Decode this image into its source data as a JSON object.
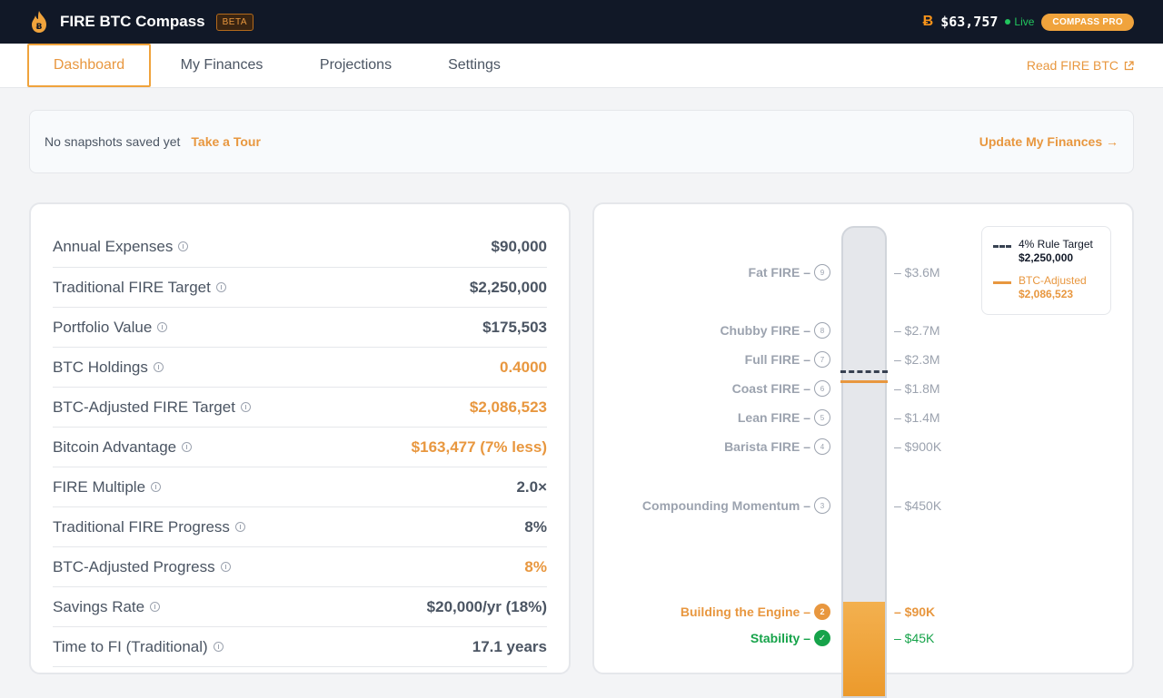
{
  "header": {
    "brand": "FIRE BTC Compass",
    "beta": "BETA",
    "btc_symbol": "Ƀ",
    "btc_price": "$63,757",
    "live": "Live",
    "pro": "COMPASS PRO",
    "logo_icon": "bitcoin-flame-icon"
  },
  "nav": {
    "tabs": [
      "Dashboard",
      "My Finances",
      "Projections",
      "Settings"
    ],
    "active_tab": "Dashboard",
    "external_link": "Read FIRE BTC",
    "external_icon": "external-link-icon"
  },
  "notice": {
    "text": "No snapshots saved yet",
    "tour": "Take a Tour",
    "update": "Update My Finances →"
  },
  "metrics": [
    {
      "label": "Annual Expenses",
      "value": "$90,000",
      "accent": false
    },
    {
      "label": "Traditional FIRE Target",
      "value": "$2,250,000",
      "accent": false
    },
    {
      "label": "Portfolio Value",
      "value": "$175,503",
      "accent": false
    },
    {
      "label": "BTC Holdings",
      "value": "0.4000",
      "accent": true
    },
    {
      "label": "BTC-Adjusted FIRE Target",
      "value": "$2,086,523",
      "accent": true
    },
    {
      "label": "Bitcoin Advantage",
      "value": "$163,477 (7% less)",
      "accent": true
    },
    {
      "label": "FIRE Multiple",
      "value": "2.0×",
      "accent": false
    },
    {
      "label": "Traditional FIRE Progress",
      "value": "8%",
      "accent": false
    },
    {
      "label": "BTC-Adjusted Progress",
      "value": "8%",
      "accent": true
    },
    {
      "label": "Savings Rate",
      "value": "$20,000/yr (18%)",
      "accent": false
    },
    {
      "label": "Time to FI (Traditional)",
      "value": "17.1 years",
      "accent": false
    }
  ],
  "levels": [
    {
      "name": "Fat FIRE –",
      "badge": "9",
      "amount": "– $3.6M",
      "state": "future"
    },
    {
      "name": "Chubby FIRE –",
      "badge": "8",
      "amount": "– $2.7M",
      "state": "future"
    },
    {
      "name": "Full FIRE –",
      "badge": "7",
      "amount": "– $2.3M",
      "state": "future"
    },
    {
      "name": "Coast FIRE –",
      "badge": "6",
      "amount": "– $1.8M",
      "state": "future"
    },
    {
      "name": "Lean FIRE –",
      "badge": "5",
      "amount": "– $1.4M",
      "state": "future"
    },
    {
      "name": "Barista FIRE –",
      "badge": "4",
      "amount": "– $900K",
      "state": "future"
    },
    {
      "name": "Compounding Momentum –",
      "badge": "3",
      "amount": "– $450K",
      "state": "future"
    },
    {
      "name": "Building the Engine –",
      "badge": "2",
      "amount": "– $90K",
      "state": "active"
    },
    {
      "name": "Stability –",
      "badge": "✓",
      "amount": "– $45K",
      "state": "done"
    }
  ],
  "legend": {
    "traditional_label": "4% Rule Target",
    "traditional_value": "$2,250,000",
    "btc_label": "BTC-Adjusted",
    "btc_value": "$2,086,523"
  },
  "colors": {
    "accent": "#e8973f",
    "topbar": "#111827",
    "success": "#16a34a"
  }
}
